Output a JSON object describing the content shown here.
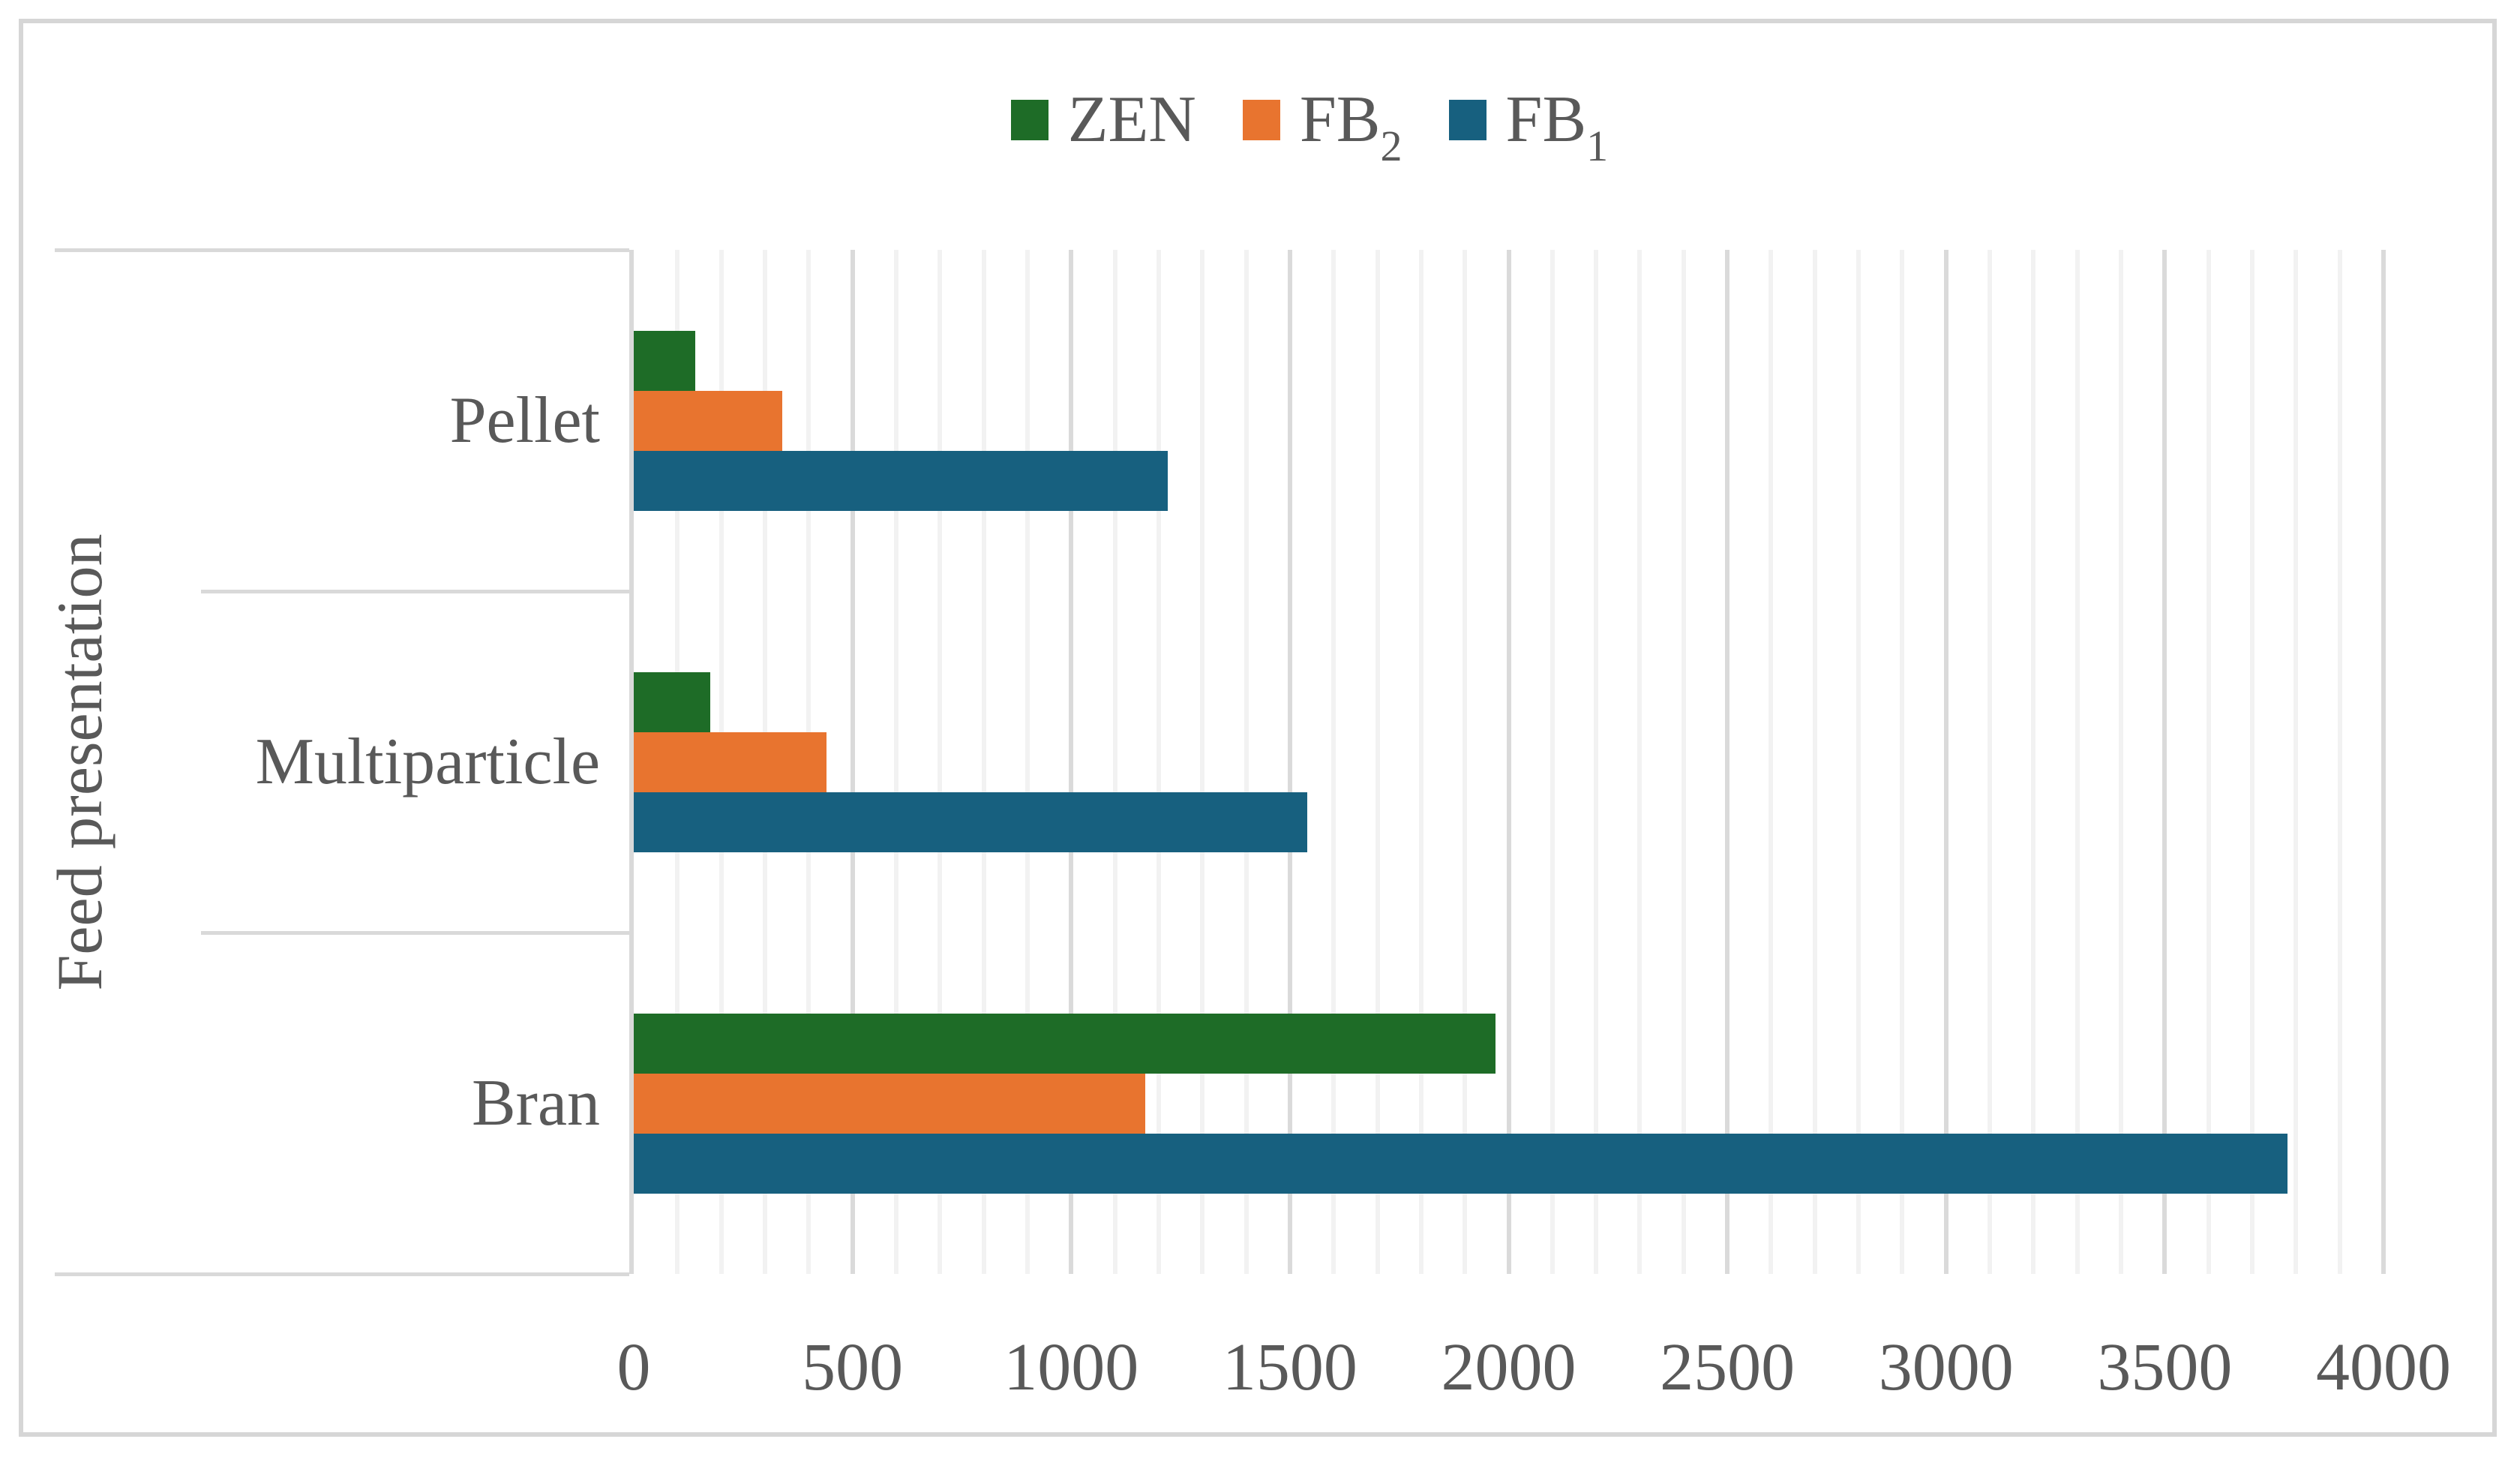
{
  "figure": {
    "background": "#FFFFFF",
    "border_color": "#D6D6D6",
    "text_color": "#595959",
    "gridline_minor_color": "#F2F2F2",
    "gridline_major_color": "#DADADA",
    "axis_line_color": "#D9D9D9"
  },
  "legend": {
    "items": [
      {
        "name": "ZEN",
        "base": "ZEN",
        "sub": "",
        "color": "#1E6C27"
      },
      {
        "name": "FB2",
        "base": "FB",
        "sub": "2",
        "color": "#E8742F"
      },
      {
        "name": "FB1",
        "base": "FB",
        "sub": "1",
        "color": "#17607F"
      }
    ]
  },
  "chart_data": {
    "type": "bar",
    "orientation": "horizontal",
    "title": "",
    "xlabel": "",
    "ylabel": "Feed presentation",
    "categories": [
      "Pellet",
      "Multiparticle",
      "Bran"
    ],
    "series": [
      {
        "name": "ZEN",
        "color": "#1E6C27",
        "values": [
          140,
          175,
          1970
        ]
      },
      {
        "name": "FB2",
        "color": "#E8742F",
        "values": [
          340,
          440,
          1170
        ]
      },
      {
        "name": "FB1",
        "color": "#17607F",
        "values": [
          1220,
          1540,
          3780
        ]
      }
    ],
    "bar_order_top_to_bottom": [
      "ZEN",
      "FB2",
      "FB1"
    ],
    "xlim": [
      0,
      4000
    ],
    "x_major_ticks": [
      0,
      500,
      1000,
      1500,
      2000,
      2500,
      3000,
      3500,
      4000
    ],
    "x_major_tick_labels": [
      "0",
      "500",
      "1000",
      "1500",
      "2000",
      "2500",
      "3000",
      "3500",
      "4000"
    ],
    "x_minor_step": 100,
    "grid": "vertical-minor-and-major",
    "legend_position": "top-center"
  }
}
